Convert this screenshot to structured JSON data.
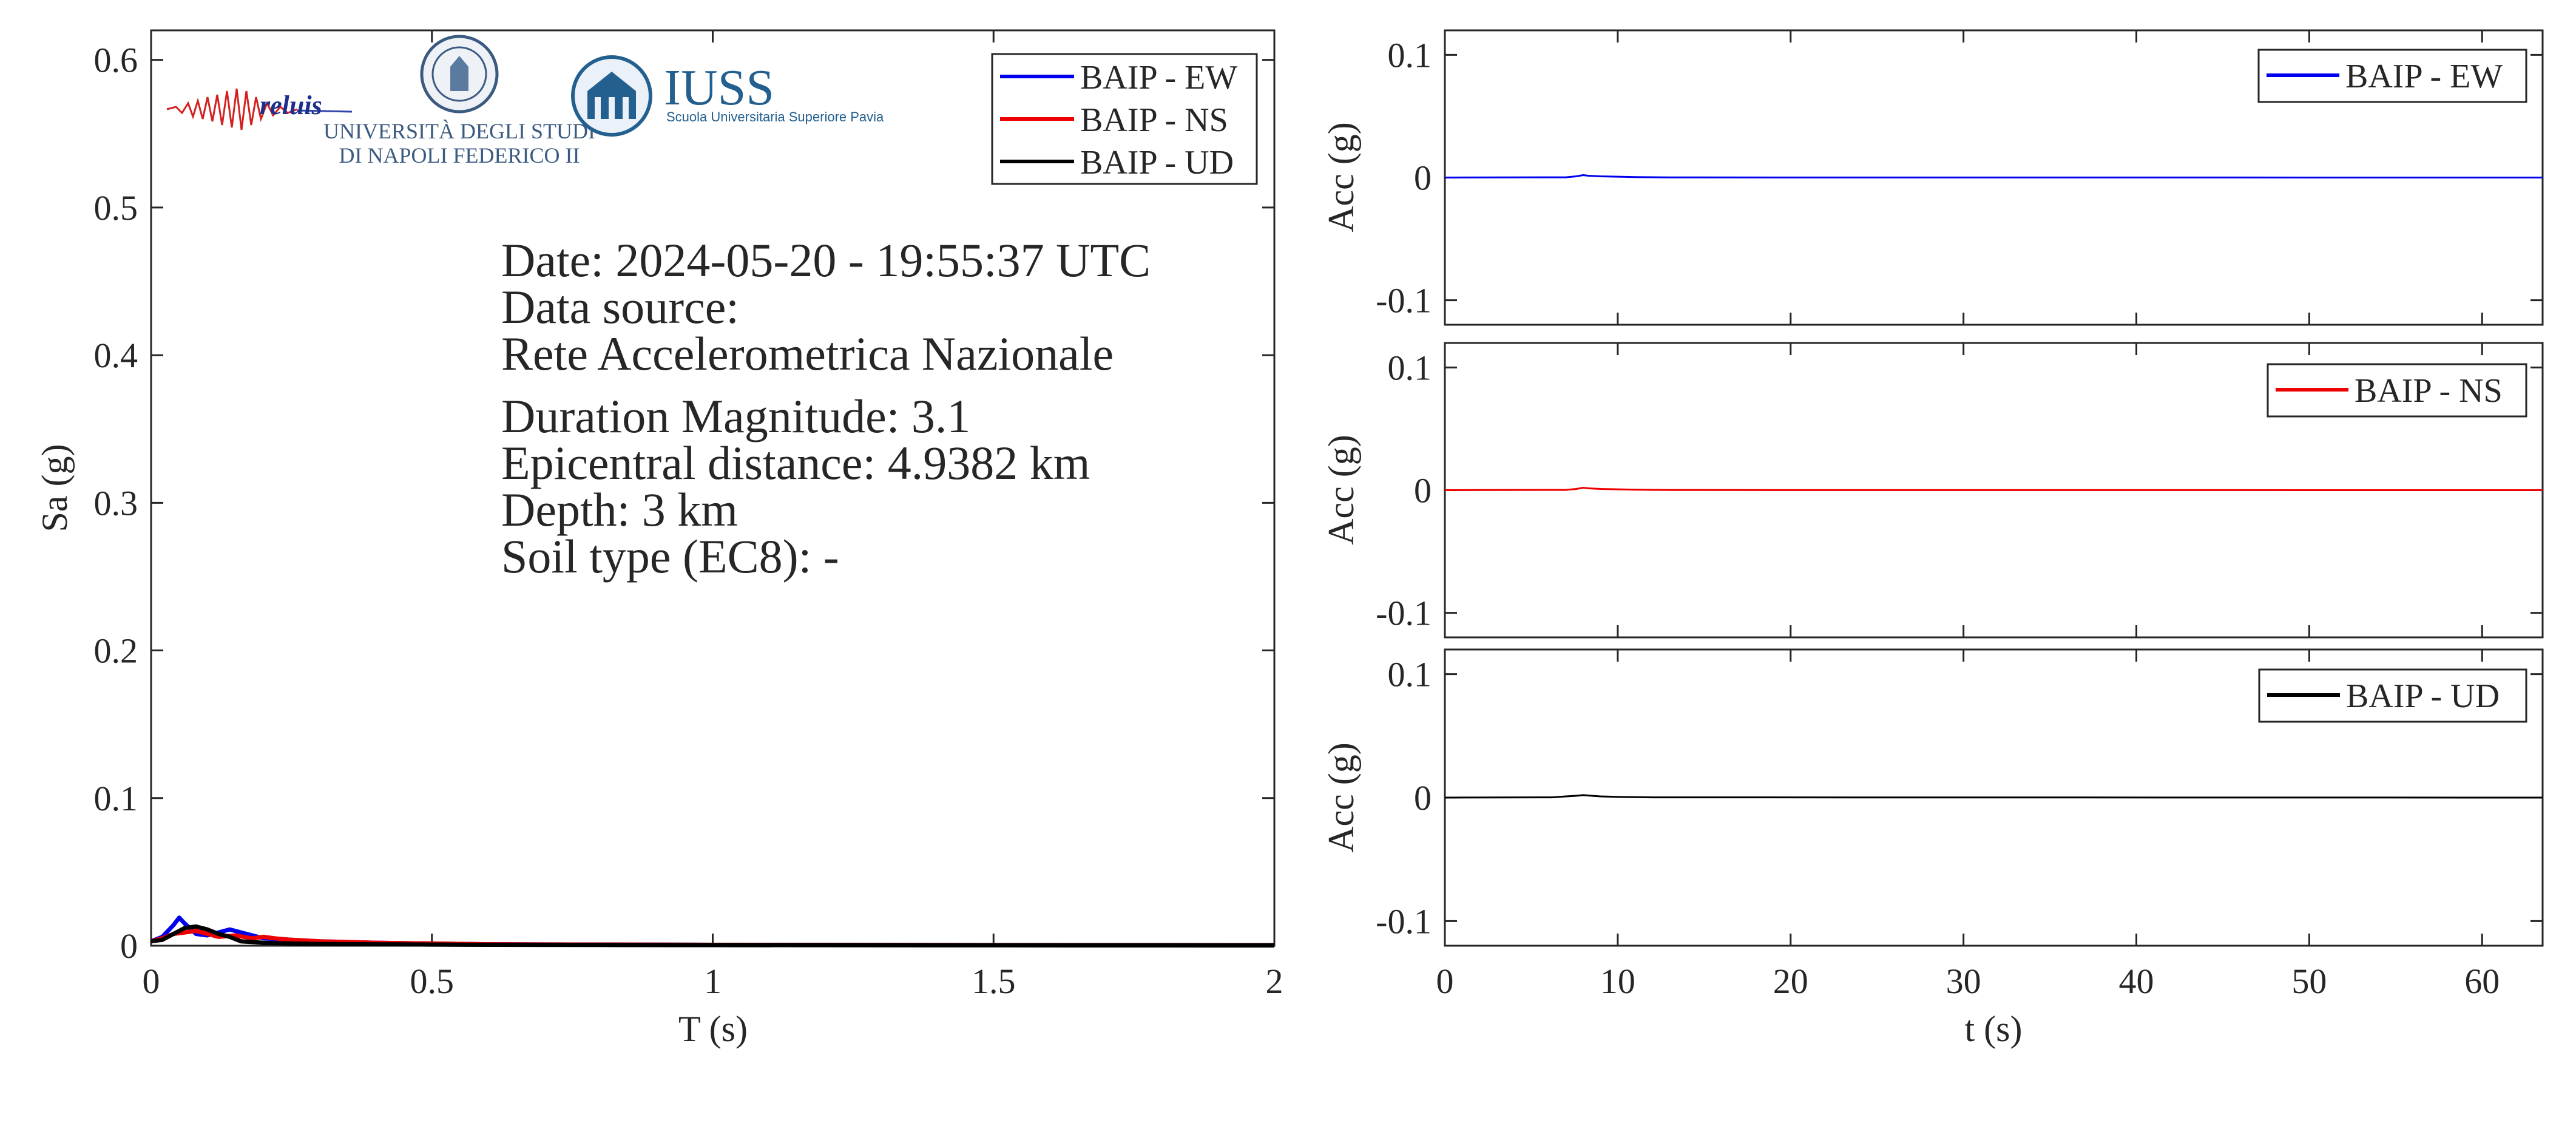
{
  "spectrum": {
    "xlabel": "T (s)",
    "ylabel": "Sa (g)",
    "xlim": [
      0,
      2
    ],
    "ylim": [
      0,
      0.62
    ],
    "xticks": [
      0,
      0.5,
      1,
      1.5,
      2
    ],
    "xtick_labels": [
      "0",
      "0.5",
      "1",
      "1.5",
      "2"
    ],
    "yticks": [
      0,
      0.1,
      0.2,
      0.3,
      0.4,
      0.5,
      0.6
    ],
    "ytick_labels": [
      "0",
      "0.1",
      "0.2",
      "0.3",
      "0.4",
      "0.5",
      "0.6"
    ],
    "legend_position": "top-right",
    "info": {
      "date": "Date: 2024-05-20 - 19:55:37 UTC",
      "source_label": "Data source:",
      "source_value": "Rete Accelerometrica Nazionale",
      "magnitude": "Duration Magnitude: 3.1",
      "distance": "Epicentral distance: 4.9382 km",
      "depth": "Depth: 3 km",
      "soil": "Soil type (EC8): -"
    },
    "logos": {
      "reluis": "reluis",
      "unina_line1": "UNIVERSITÀ DEGLI STUDI",
      "unina_line2": "DI NAPOLI FEDERICO II",
      "iuss_title": "IUSS",
      "iuss_subtitle": "Scuola Universitaria Superiore Pavia"
    }
  },
  "timeseries_axes": {
    "xlabel": "t (s)",
    "ylabel": "Acc (g)",
    "xlim": [
      0,
      63.5
    ],
    "ylim": [
      -0.12,
      0.12
    ],
    "xticks": [
      0,
      10,
      20,
      30,
      40,
      50,
      60
    ],
    "xtick_labels": [
      "0",
      "10",
      "20",
      "30",
      "40",
      "50",
      "60"
    ],
    "yticks": [
      -0.1,
      0,
      0.1
    ],
    "ytick_labels": [
      "-0.1",
      "0",
      "0.1"
    ]
  },
  "colors": {
    "ew": "#0000ee",
    "ns": "#ee0000",
    "ud": "#000000",
    "axis": "#262626"
  },
  "chart_data": [
    {
      "type": "line",
      "xlabel": "T (s)",
      "ylabel": "Sa (g)",
      "xlim": [
        0,
        2
      ],
      "ylim": [
        0,
        0.62
      ],
      "grid": false,
      "legend": "top-right",
      "series": [
        {
          "name": "BAIP - EW",
          "color": "#0000ee",
          "x": [
            0,
            0.02,
            0.04,
            0.05,
            0.06,
            0.08,
            0.1,
            0.12,
            0.14,
            0.16,
            0.2,
            0.25,
            0.3,
            0.4,
            0.5,
            0.6,
            0.8,
            1.0,
            1.5,
            2.0
          ],
          "y": [
            0.003,
            0.006,
            0.014,
            0.019,
            0.015,
            0.008,
            0.007,
            0.009,
            0.011,
            0.009,
            0.005,
            0.004,
            0.003,
            0.002,
            0.0015,
            0.001,
            0.0008,
            0.0006,
            0.0004,
            0.0003
          ]
        },
        {
          "name": "BAIP - NS",
          "color": "#ee0000",
          "x": [
            0,
            0.02,
            0.04,
            0.06,
            0.08,
            0.1,
            0.12,
            0.15,
            0.18,
            0.2,
            0.22,
            0.25,
            0.3,
            0.4,
            0.5,
            0.6,
            0.8,
            1.0,
            1.5,
            2.0
          ],
          "y": [
            0.003,
            0.005,
            0.008,
            0.009,
            0.01,
            0.008,
            0.006,
            0.007,
            0.005,
            0.006,
            0.005,
            0.004,
            0.003,
            0.002,
            0.0015,
            0.001,
            0.0008,
            0.0006,
            0.0004,
            0.0003
          ]
        },
        {
          "name": "BAIP - UD",
          "color": "#000000",
          "x": [
            0,
            0.02,
            0.04,
            0.06,
            0.08,
            0.1,
            0.12,
            0.14,
            0.16,
            0.2,
            0.25,
            0.3,
            0.4,
            0.5,
            0.6,
            0.8,
            1.0,
            1.5,
            2.0
          ],
          "y": [
            0.003,
            0.004,
            0.008,
            0.012,
            0.013,
            0.011,
            0.008,
            0.006,
            0.003,
            0.002,
            0.0015,
            0.0012,
            0.001,
            0.0008,
            0.0006,
            0.0005,
            0.0004,
            0.0003,
            0.0002
          ]
        }
      ]
    },
    {
      "type": "line",
      "xlabel": "t (s)",
      "ylabel": "Acc (g)",
      "xlim": [
        0,
        63.5
      ],
      "ylim": [
        -0.12,
        0.12
      ],
      "legend": "top-right",
      "series": [
        {
          "name": "BAIP - EW",
          "color": "#0000ee",
          "x": [
            0,
            7.0,
            7.6,
            8.0,
            8.3,
            9.0,
            10.0,
            11.0,
            13.0,
            63.5
          ],
          "y": [
            0,
            0.0002,
            0.001,
            0.002,
            0.0015,
            0.001,
            0.0007,
            0.0004,
            0.0001,
            0
          ]
        }
      ]
    },
    {
      "type": "line",
      "xlabel": "t (s)",
      "ylabel": "Acc (g)",
      "xlim": [
        0,
        63.5
      ],
      "ylim": [
        -0.12,
        0.12
      ],
      "legend": "top-right",
      "series": [
        {
          "name": "BAIP - NS",
          "color": "#ee0000",
          "x": [
            0,
            7.0,
            7.6,
            8.0,
            8.3,
            9.0,
            10.0,
            11.0,
            13.0,
            63.5
          ],
          "y": [
            0,
            0.0002,
            0.001,
            0.002,
            0.0015,
            0.001,
            0.0007,
            0.0004,
            0.0001,
            0
          ]
        }
      ]
    },
    {
      "type": "line",
      "xlabel": "t (s)",
      "ylabel": "Acc (g)",
      "xlim": [
        0,
        63.5
      ],
      "ylim": [
        -0.12,
        0.12
      ],
      "legend": "top-right",
      "series": [
        {
          "name": "BAIP - UD",
          "color": "#000000",
          "x": [
            0,
            6.2,
            7.0,
            7.6,
            8.0,
            8.5,
            9.0,
            10.0,
            12.0,
            63.5
          ],
          "y": [
            0,
            0.0002,
            0.001,
            0.0015,
            0.002,
            0.0015,
            0.001,
            0.0006,
            0.0002,
            0
          ]
        }
      ]
    }
  ]
}
